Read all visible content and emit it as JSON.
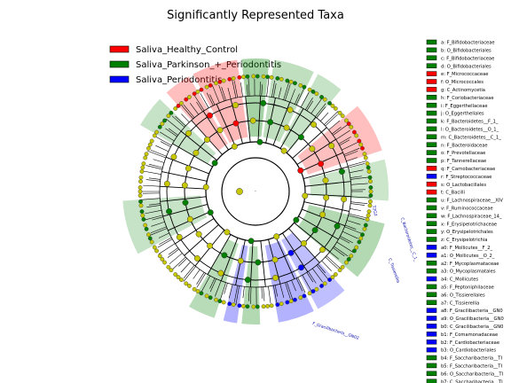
{
  "chart_data": {
    "type": "cladogram",
    "title": "Significantly Represented Taxa",
    "groups": [
      {
        "name": "Saliva_Healthy_Control",
        "color": "#ff0000"
      },
      {
        "name": "Saliva_Parkinson_+_Periodontitis",
        "color": "#008000"
      },
      {
        "name": "Saliva_Periodontitis",
        "color": "#0000ff"
      }
    ],
    "clades": [
      {
        "label": "a: F_Bifidobacteriaceae",
        "group": 1
      },
      {
        "label": "b: O_Bifidobacteriales",
        "group": 1
      },
      {
        "label": "c: F_Bifidobacteriaceae",
        "group": 1
      },
      {
        "label": "d: O_Bifidobacteriales",
        "group": 1
      },
      {
        "label": "e: F_Micrococcaceae",
        "group": 0
      },
      {
        "label": "f: O_Micrococcales",
        "group": 0
      },
      {
        "label": "g: C_Actinomycetia",
        "group": 0
      },
      {
        "label": "h: F_Coriobacteriaceae",
        "group": 1
      },
      {
        "label": "i: F_Eggerthellaceae",
        "group": 1
      },
      {
        "label": "j: O_Eggerthellales",
        "group": 1
      },
      {
        "label": "k: F_Bacteroidetes__F_1_",
        "group": 1
      },
      {
        "label": "l: O_Bacteroidetes__O_1_",
        "group": 1
      },
      {
        "label": "m: C_Bacteroidetes__C_1_",
        "group": 1
      },
      {
        "label": "n: F_Bacteroidaceae",
        "group": 1
      },
      {
        "label": "o: F_Prevotellaceae",
        "group": 1
      },
      {
        "label": "p: F_Tannerellaceae",
        "group": 1
      },
      {
        "label": "q: F_Carnobacteriaceae",
        "group": 0
      },
      {
        "label": "r: F_Streptococcaceae",
        "group": 2
      },
      {
        "label": "s: O_Lactobacillales",
        "group": 0
      },
      {
        "label": "t: C_Bacilli",
        "group": 0
      },
      {
        "label": "u: F_Lachnospiraceae__XIV",
        "group": 1
      },
      {
        "label": "v: F_Ruminococcaceae",
        "group": 1
      },
      {
        "label": "w: F_Lachnospiraceae_14_",
        "group": 1
      },
      {
        "label": "x: F_Erysipelotrichaceae",
        "group": 1
      },
      {
        "label": "y: O_Erysipelotrichales",
        "group": 1
      },
      {
        "label": "z: C_Erysipelotrichia",
        "group": 1
      },
      {
        "label": "a0: F_Mollicutes__F_2_",
        "group": 2
      },
      {
        "label": "a1: O_Mollicutes__O_2_",
        "group": 2
      },
      {
        "label": "a2: F_Mycoplasmataceae",
        "group": 1
      },
      {
        "label": "a3: O_Mycoplasmatales",
        "group": 1
      },
      {
        "label": "a4: C_Mollicutes",
        "group": 2
      },
      {
        "label": "a5: F_Peptoniphilaceae",
        "group": 1
      },
      {
        "label": "a6: O_Tissierellales",
        "group": 1
      },
      {
        "label": "a7: C_Tissierellia",
        "group": 1
      },
      {
        "label": "a8: F_Gracilibacteria__GN0",
        "group": 2
      },
      {
        "label": "a9: O_Gracilibacteria__GN0",
        "group": 2
      },
      {
        "label": "b0: C_Gracilibacteria__GN0",
        "group": 2
      },
      {
        "label": "b1: F_Comamonadaceae",
        "group": 2
      },
      {
        "label": "b2: F_Cardiobacteriaceae",
        "group": 2
      },
      {
        "label": "b3: O_Cardiobacteriales",
        "group": 2
      },
      {
        "label": "b4: F_Saccharibacteria__TI",
        "group": 1
      },
      {
        "label": "b5: F_Saccharibacteria__TI",
        "group": 1
      },
      {
        "label": "b6: O_Saccharibacteria__TI",
        "group": 1
      },
      {
        "label": "b7: C_Saccharibacteria__TI",
        "group": 1
      }
    ],
    "sector_labels": [
      {
        "text": "F_Gracilibacteria__GN02",
        "group": 2
      },
      {
        "text": "C_Bacteroidetes__C_1_",
        "group": 1
      },
      {
        "text": "C_Tissierellia",
        "group": 1
      },
      {
        "text": "T2G2",
        "group": 1
      }
    ],
    "axis_marker": "."
  }
}
